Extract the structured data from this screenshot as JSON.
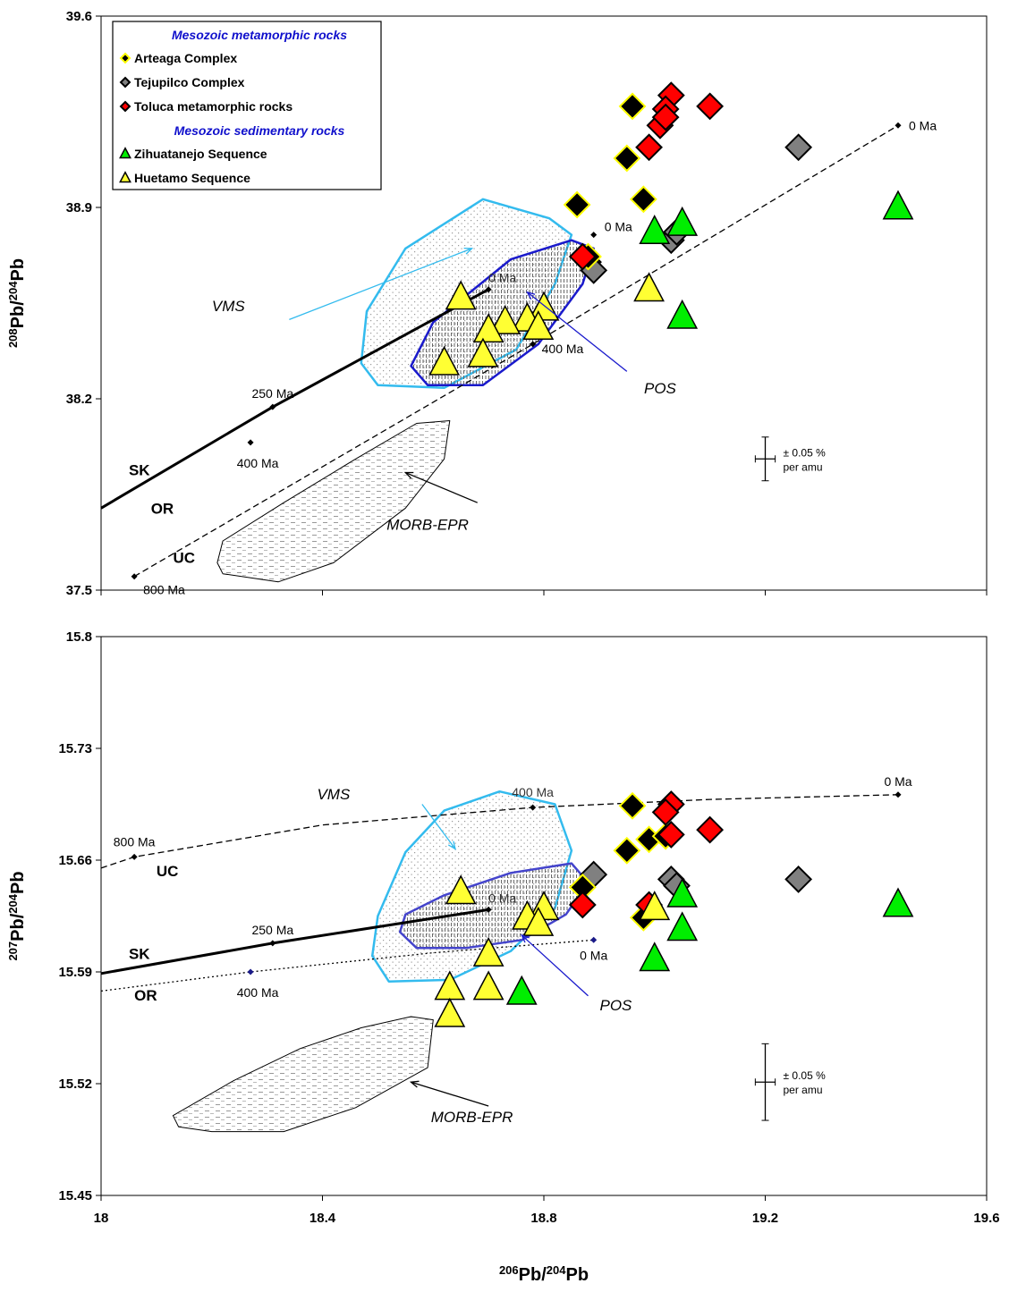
{
  "legend": {
    "groups": [
      {
        "heading": "Mesozoic metamorphic rocks",
        "items": [
          {
            "label": "Arteaga Complex",
            "key": "arteaga"
          },
          {
            "label": "Tejupilco Complex",
            "key": "tejupilco"
          },
          {
            "label": "Toluca metamorphic rocks",
            "key": "toluca"
          }
        ]
      },
      {
        "heading": "Mesozoic sedimentary rocks",
        "items": [
          {
            "label": "Zihuatanejo Sequence",
            "key": "zihuatanejo"
          },
          {
            "label": "Huetamo Sequence",
            "key": "huetamo"
          }
        ]
      }
    ]
  },
  "styles": {
    "arteaga": {
      "shape": "diamond",
      "fill": "#000000",
      "stroke": "#ffff00"
    },
    "tejupilco": {
      "shape": "diamond",
      "fill": "#808080",
      "stroke": "#000000"
    },
    "toluca": {
      "shape": "diamond",
      "fill": "#ff0000",
      "stroke": "#000000"
    },
    "zihuatanejo": {
      "shape": "triangle",
      "fill": "#00ee00",
      "stroke": "#000000"
    },
    "huetamo": {
      "shape": "triangle",
      "fill": "#ffff33",
      "stroke": "#000000"
    },
    "heading_color": "#1010cc",
    "vms_color": "#33bbee",
    "pos_color": "#1a1acc"
  },
  "chart_data": [
    {
      "type": "scatter",
      "id": "top",
      "xlim": [
        18,
        19.6
      ],
      "ylim": [
        37.5,
        39.6
      ],
      "xticks": [
        "18",
        "18.4",
        "18.8",
        "19.2",
        "19.6"
      ],
      "yticks": [
        {
          "v": 37.5,
          "label": "37.5"
        },
        {
          "v": 38.2,
          "label": "38.2"
        },
        {
          "v": 38.9,
          "label": "38.9"
        },
        {
          "v": 39.6,
          "label": "39.6"
        }
      ],
      "ylabel": {
        "base": "Pb/",
        "sup1": "208",
        "sup2": "204",
        "tail": "Pb"
      },
      "series": {
        "arteaga": [
          [
            18.86,
            38.91
          ],
          [
            18.96,
            39.27
          ],
          [
            18.95,
            39.08
          ],
          [
            18.98,
            38.93
          ],
          [
            18.88,
            38.72
          ]
        ],
        "toluca": [
          [
            19.03,
            39.31
          ],
          [
            19.02,
            39.26
          ],
          [
            19.01,
            39.2
          ],
          [
            19.02,
            39.23
          ],
          [
            19.1,
            39.27
          ],
          [
            18.99,
            39.12
          ],
          [
            18.87,
            38.72
          ]
        ],
        "tejupilco": [
          [
            19.26,
            39.12
          ],
          [
            19.03,
            38.78
          ],
          [
            19.04,
            38.81
          ],
          [
            18.88,
            38.7
          ],
          [
            18.89,
            38.67
          ]
        ],
        "zihuatanejo": [
          [
            19.44,
            38.9
          ],
          [
            19.05,
            38.84
          ],
          [
            19.05,
            38.5
          ],
          [
            19.0,
            38.81
          ]
        ],
        "huetamo": [
          [
            18.99,
            38.6
          ],
          [
            18.65,
            38.57
          ],
          [
            18.8,
            38.53
          ],
          [
            18.77,
            38.49
          ],
          [
            18.73,
            38.48
          ],
          [
            18.79,
            38.46
          ],
          [
            18.7,
            38.45
          ],
          [
            18.62,
            38.33
          ],
          [
            18.69,
            38.36
          ]
        ]
      },
      "curves": [
        {
          "name": "SK",
          "style": "solid",
          "points": [
            [
              18.0,
              37.8
            ],
            [
              18.31,
              38.17
            ],
            [
              18.7,
              38.6
            ]
          ],
          "ticks": [
            [
              18.31,
              38.17,
              "250 Ma"
            ],
            [
              18.7,
              38.6,
              "0 Ma"
            ]
          ]
        },
        {
          "name": "UC",
          "style": "dashed",
          "points": [
            [
              18.06,
              37.55
            ],
            [
              18.78,
              38.4
            ],
            [
              19.44,
              39.2
            ]
          ],
          "ticks": [
            [
              18.06,
              37.55,
              "800 Ma"
            ],
            [
              18.78,
              38.4,
              "400 Ma"
            ],
            [
              19.44,
              39.2,
              "0 Ma"
            ]
          ]
        },
        {
          "name": "OR",
          "style": "none",
          "points": [
            [
              18.27,
              38.04
            ],
            [
              18.89,
              38.8
            ]
          ],
          "ticks": [
            [
              18.27,
              38.04,
              "400 Ma"
            ],
            [
              18.89,
              38.8,
              "0 Ma"
            ]
          ]
        }
      ],
      "curve_labels": [
        {
          "text": "SK",
          "x": 18.05,
          "y": 37.92
        },
        {
          "text": "OR",
          "x": 18.09,
          "y": 37.78
        },
        {
          "text": "UC",
          "x": 18.13,
          "y": 37.6
        }
      ],
      "fields": [
        {
          "name": "VMS",
          "color": "#33bbee",
          "fill": "dots",
          "points": [
            [
              18.5,
              38.25
            ],
            [
              18.62,
              38.24
            ],
            [
              18.75,
              38.38
            ],
            [
              18.82,
              38.62
            ],
            [
              18.85,
              38.8
            ],
            [
              18.81,
              38.86
            ],
            [
              18.69,
              38.93
            ],
            [
              18.55,
              38.75
            ],
            [
              18.48,
              38.52
            ],
            [
              18.47,
              38.33
            ]
          ]
        },
        {
          "name": "POS",
          "color": "#1a1acc",
          "fill": "lines",
          "points": [
            [
              18.59,
              38.25
            ],
            [
              18.69,
              38.25
            ],
            [
              18.79,
              38.4
            ],
            [
              18.87,
              38.62
            ],
            [
              18.89,
              38.75
            ],
            [
              18.85,
              38.78
            ],
            [
              18.74,
              38.71
            ],
            [
              18.6,
              38.48
            ],
            [
              18.56,
              38.32
            ]
          ]
        },
        {
          "name": "MORB-EPR",
          "color": "#000000",
          "fill": "dashes",
          "points": [
            [
              18.22,
              37.56
            ],
            [
              18.32,
              37.53
            ],
            [
              18.42,
              37.6
            ],
            [
              18.55,
              37.8
            ],
            [
              18.62,
              37.98
            ],
            [
              18.63,
              38.12
            ],
            [
              18.57,
              38.11
            ],
            [
              18.46,
              37.98
            ],
            [
              18.33,
              37.82
            ],
            [
              18.22,
              37.68
            ],
            [
              18.21,
              37.6
            ]
          ]
        }
      ],
      "annotations": [
        {
          "text": "VMS",
          "x": 18.23,
          "y": 38.52,
          "italic": true,
          "arrow": [
            18.34,
            38.49,
            18.67,
            38.75
          ],
          "color": "#33bbee"
        },
        {
          "text": "POS",
          "x": 19.01,
          "y": 38.22,
          "italic": true,
          "arrow": [
            18.95,
            38.3,
            18.77,
            38.59
          ],
          "color": "#1a1acc"
        },
        {
          "text": "MORB-EPR",
          "x": 18.59,
          "y": 37.72,
          "italic": true,
          "arrow": [
            18.68,
            37.82,
            18.55,
            37.93
          ],
          "color": "#000000"
        }
      ],
      "errorbar": {
        "x": 19.2,
        "y": 37.98,
        "dx": 0.018,
        "dy": 0.08,
        "line1": "± 0.05 %",
        "line2": "per amu"
      }
    },
    {
      "type": "scatter",
      "id": "bottom",
      "xlim": [
        18,
        19.6
      ],
      "ylim": [
        15.45,
        15.8
      ],
      "xticks": [
        "18",
        "18.4",
        "18.8",
        "19.2",
        "19.6"
      ],
      "yticks": [
        {
          "v": 15.45,
          "label": "15.45"
        },
        {
          "v": 15.52,
          "label": "15.52"
        },
        {
          "v": 15.59,
          "label": "15.59"
        },
        {
          "v": 15.66,
          "label": "15.66"
        },
        {
          "v": 15.73,
          "label": "15.73"
        },
        {
          "v": 15.8,
          "label": "15.8"
        }
      ],
      "xlabel": {
        "sup1": "206",
        "base": "Pb/",
        "sup2": "204",
        "tail": "Pb"
      },
      "ylabel": {
        "base": "Pb/",
        "sup1": "207",
        "sup2": "204",
        "tail": "Pb"
      },
      "series": {
        "arteaga": [
          [
            18.96,
            15.694
          ],
          [
            18.95,
            15.666
          ],
          [
            18.99,
            15.673
          ],
          [
            18.98,
            15.624
          ],
          [
            18.87,
            15.643
          ],
          [
            19.02,
            15.675
          ]
        ],
        "toluca": [
          [
            19.03,
            15.695
          ],
          [
            19.02,
            15.69
          ],
          [
            19.03,
            15.676
          ],
          [
            19.1,
            15.679
          ],
          [
            18.87,
            15.632
          ],
          [
            18.99,
            15.632
          ]
        ],
        "tejupilco": [
          [
            19.26,
            15.648
          ],
          [
            18.89,
            15.651
          ],
          [
            19.03,
            15.648
          ],
          [
            19.04,
            15.644
          ]
        ],
        "zihuatanejo": [
          [
            19.44,
            15.632
          ],
          [
            19.05,
            15.638
          ],
          [
            19.05,
            15.617
          ],
          [
            19.0,
            15.598
          ],
          [
            18.76,
            15.577
          ]
        ],
        "huetamo": [
          [
            18.65,
            15.64
          ],
          [
            18.8,
            15.63
          ],
          [
            18.77,
            15.624
          ],
          [
            18.79,
            15.62
          ],
          [
            18.7,
            15.601
          ],
          [
            18.63,
            15.58
          ],
          [
            18.7,
            15.58
          ],
          [
            18.63,
            15.563
          ],
          [
            19.0,
            15.63
          ]
        ]
      },
      "curves": [
        {
          "name": "UC",
          "style": "dashed",
          "points": [
            [
              18.0,
              15.655
            ],
            [
              18.06,
              15.662
            ],
            [
              18.4,
              15.682
            ],
            [
              18.78,
              15.693
            ],
            [
              19.1,
              15.698
            ],
            [
              19.44,
              15.701
            ]
          ],
          "ticks": [
            [
              18.06,
              15.662,
              "800 Ma"
            ],
            [
              18.78,
              15.693,
              "400 Ma"
            ],
            [
              19.44,
              15.701,
              "0 Ma"
            ]
          ]
        },
        {
          "name": "SK",
          "style": "solid",
          "points": [
            [
              18.0,
              15.589
            ],
            [
              18.31,
              15.608
            ],
            [
              18.7,
              15.629
            ]
          ],
          "ticks": [
            [
              18.31,
              15.608,
              "250 Ma"
            ],
            [
              18.7,
              15.629,
              "0 Ma"
            ]
          ]
        },
        {
          "name": "OR",
          "style": "dotted",
          "points": [
            [
              18.0,
              15.578
            ],
            [
              18.27,
              15.59
            ],
            [
              18.6,
              15.602
            ],
            [
              18.89,
              15.61
            ]
          ],
          "ticks": [
            [
              18.27,
              15.59,
              "400 Ma"
            ],
            [
              18.89,
              15.61,
              "0 Ma"
            ]
          ]
        }
      ],
      "curve_labels": [
        {
          "text": "UC",
          "x": 18.1,
          "y": 15.65
        },
        {
          "text": "SK",
          "x": 18.05,
          "y": 15.598
        },
        {
          "text": "OR",
          "x": 18.06,
          "y": 15.572
        }
      ],
      "fields": [
        {
          "name": "VMS",
          "color": "#33bbee",
          "fill": "dots",
          "points": [
            [
              18.52,
              15.584
            ],
            [
              18.63,
              15.585
            ],
            [
              18.74,
              15.603
            ],
            [
              18.82,
              15.63
            ],
            [
              18.85,
              15.666
            ],
            [
              18.82,
              15.695
            ],
            [
              18.72,
              15.703
            ],
            [
              18.62,
              15.691
            ],
            [
              18.55,
              15.665
            ],
            [
              18.5,
              15.625
            ],
            [
              18.49,
              15.6
            ]
          ]
        },
        {
          "name": "POS",
          "color": "#4444cc",
          "fill": "lines",
          "points": [
            [
              18.57,
              15.605
            ],
            [
              18.66,
              15.605
            ],
            [
              18.76,
              15.61
            ],
            [
              18.84,
              15.626
            ],
            [
              18.88,
              15.646
            ],
            [
              18.85,
              15.658
            ],
            [
              18.74,
              15.652
            ],
            [
              18.62,
              15.638
            ],
            [
              18.55,
              15.626
            ],
            [
              18.54,
              15.615
            ]
          ]
        },
        {
          "name": "MORB-EPR",
          "color": "#000000",
          "fill": "dashes",
          "points": [
            [
              18.14,
              15.493
            ],
            [
              18.2,
              15.49
            ],
            [
              18.33,
              15.49
            ],
            [
              18.46,
              15.505
            ],
            [
              18.59,
              15.53
            ],
            [
              18.6,
              15.56
            ],
            [
              18.56,
              15.562
            ],
            [
              18.47,
              15.555
            ],
            [
              18.36,
              15.542
            ],
            [
              18.24,
              15.522
            ],
            [
              18.13,
              15.5
            ]
          ]
        }
      ],
      "annotations": [
        {
          "text": "VMS",
          "x": 18.42,
          "y": 15.698,
          "italic": true,
          "arrow": [
            18.58,
            15.695,
            18.64,
            15.667
          ],
          "color": "#33bbee"
        },
        {
          "text": "POS",
          "x": 18.93,
          "y": 15.566,
          "italic": true,
          "arrow": [
            18.88,
            15.575,
            18.76,
            15.613
          ],
          "color": "#1a1acc"
        },
        {
          "text": "MORB-EPR",
          "x": 18.67,
          "y": 15.496,
          "italic": true,
          "arrow": [
            18.7,
            15.506,
            18.56,
            15.521
          ],
          "color": "#000000"
        }
      ],
      "errorbar": {
        "x": 19.2,
        "y": 15.521,
        "dx": 0.018,
        "dy": 0.024,
        "line1": "± 0.05 %",
        "line2": "per amu"
      }
    }
  ]
}
